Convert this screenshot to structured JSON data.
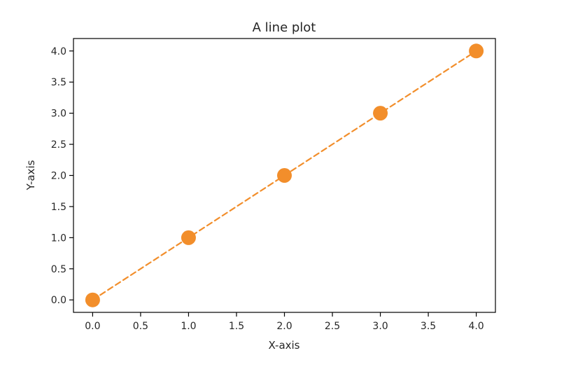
{
  "chart_data": {
    "type": "line",
    "title": "A line plot",
    "xlabel": "X-axis",
    "ylabel": "Y-axis",
    "x": [
      0,
      1,
      2,
      3,
      4
    ],
    "series": [
      {
        "values": [
          0,
          1,
          2,
          3,
          4
        ],
        "line_style": "dashed",
        "marker": "circle",
        "color": "#f28e2b"
      }
    ],
    "xlim": [
      -0.2,
      4.2
    ],
    "ylim": [
      -0.2,
      4.2
    ],
    "xticks": [
      0,
      0.5,
      1,
      1.5,
      2,
      2.5,
      3,
      3.5,
      4
    ],
    "yticks": [
      0,
      0.5,
      1,
      1.5,
      2,
      2.5,
      3,
      3.5,
      4
    ],
    "xtick_labels": [
      "0.0",
      "0.5",
      "1.0",
      "1.5",
      "2.0",
      "2.5",
      "3.0",
      "3.5",
      "4.0"
    ],
    "ytick_labels": [
      "0.0",
      "0.5",
      "1.0",
      "1.5",
      "2.0",
      "2.5",
      "3.0",
      "3.5",
      "4.0"
    ],
    "grid": false,
    "legend": "none"
  }
}
